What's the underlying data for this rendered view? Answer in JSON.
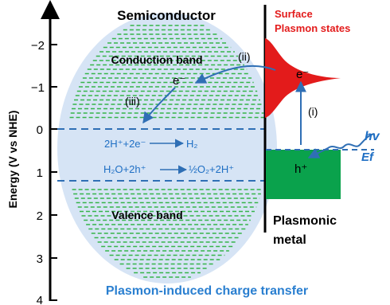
{
  "axis": {
    "label": "Energy (V vs NHE)",
    "ticks": [
      "−2",
      "−1",
      "0",
      "1",
      "2",
      "3",
      "4"
    ]
  },
  "labels": {
    "semiconductor": "Semiconductor",
    "surface_line1": "Surface",
    "surface_line2": "Plasmon states",
    "conduction_band": "Conduction band",
    "valence_band": "Valence band",
    "step_ii": "(ii)",
    "step_iii": "(iii)",
    "step_i": "(i)",
    "electron_sc": "e⁻",
    "electron_metal": "e⁻",
    "hole": "h⁺",
    "hv": "hv",
    "ef": "Ef",
    "reaction1_left": "2H⁺+2e⁻",
    "reaction1_right": "H₂",
    "reaction2_left": "H₂O+2h⁺",
    "reaction2_right": "½O₂+2H⁺",
    "metal_line1": "Plasmonic",
    "metal_line2": "metal",
    "caption": "Plasmon-induced charge transfer"
  },
  "colors": {
    "surface_red": "#e31b1b",
    "blue_text": "#1f6fc4",
    "caption_blue": "#2a7fd0",
    "band_green": "#35b44a",
    "metal_green": "#0aa24c",
    "sphere": "#d6e4f5"
  }
}
